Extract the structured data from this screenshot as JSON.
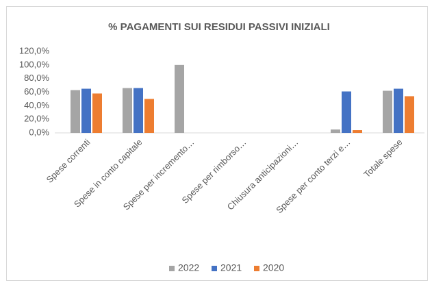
{
  "chart_data": {
    "type": "bar",
    "title": "% PAGAMENTI SUI RESIDUI PASSIVI INIZIALI",
    "categories": [
      "Spese correnti",
      "Spese in conto capitale",
      "Spese per incremento…",
      "Spese per rimborso…",
      "Chiusura anticipazioni…",
      "Spese per conto terzi e…",
      "Totale spese"
    ],
    "series": [
      {
        "name": "2022",
        "color": "#a5a5a5",
        "values": [
          63,
          66,
          100,
          0,
          0,
          5,
          62
        ]
      },
      {
        "name": "2021",
        "color": "#4472c4",
        "values": [
          65,
          66,
          0,
          0,
          0,
          61,
          65
        ]
      },
      {
        "name": "2020",
        "color": "#ed7d31",
        "values": [
          58,
          50,
          0,
          0,
          0,
          4,
          54
        ]
      }
    ],
    "ylim": [
      0,
      120
    ],
    "yticks": [
      {
        "value": 0,
        "label": "0,0%"
      },
      {
        "value": 20,
        "label": "20,0%"
      },
      {
        "value": 40,
        "label": "40,0%"
      },
      {
        "value": 60,
        "label": "60,0%"
      },
      {
        "value": 80,
        "label": "80,0%"
      },
      {
        "value": 100,
        "label": "100,0%"
      },
      {
        "value": 120,
        "label": "120,0%"
      }
    ],
    "grid": false,
    "legend": "bottom"
  }
}
